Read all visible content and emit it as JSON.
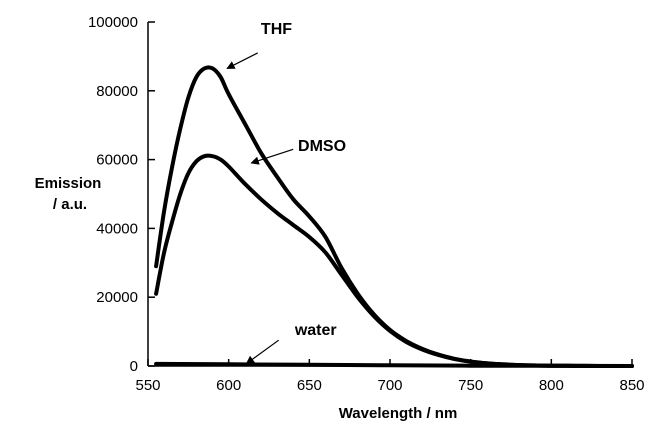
{
  "chart_data": {
    "type": "line",
    "xlabel": "Wavelength / nm",
    "ylabel_line1": "Emission",
    "ylabel_line2": "/ a.u.",
    "xlim": [
      550,
      850
    ],
    "ylim": [
      0,
      100000
    ],
    "xticks": [
      550,
      600,
      650,
      700,
      750,
      800,
      850
    ],
    "yticks": [
      0,
      20000,
      40000,
      60000,
      80000,
      100000
    ],
    "grid": false,
    "series": [
      {
        "name": "THF",
        "x": [
          555,
          560,
          565,
          570,
          575,
          580,
          585,
          590,
          595,
          600,
          610,
          620,
          630,
          640,
          650,
          660,
          670,
          680,
          690,
          700,
          710,
          720,
          730,
          740,
          750,
          760,
          770,
          780,
          790,
          800,
          810,
          820,
          830,
          840,
          850
        ],
        "y": [
          29000,
          45000,
          58000,
          69000,
          78000,
          84000,
          86500,
          86500,
          84000,
          79000,
          70500,
          62000,
          55000,
          48500,
          43500,
          37500,
          28500,
          21000,
          15000,
          10500,
          7300,
          5000,
          3300,
          2100,
          1300,
          800,
          480,
          280,
          160,
          90,
          50,
          25,
          12,
          5,
          0
        ]
      },
      {
        "name": "DMSO",
        "x": [
          555,
          560,
          565,
          570,
          575,
          580,
          585,
          590,
          595,
          600,
          610,
          620,
          630,
          640,
          650,
          660,
          670,
          680,
          690,
          700,
          710,
          720,
          730,
          740,
          750,
          760,
          770,
          780,
          790,
          800,
          810,
          820,
          830,
          840,
          850
        ],
        "y": [
          21000,
          33000,
          42000,
          50000,
          56000,
          59500,
          61000,
          61000,
          60000,
          58000,
          53000,
          48500,
          44500,
          41000,
          37500,
          33000,
          26500,
          20000,
          14500,
          10200,
          7000,
          4800,
          3200,
          2000,
          1250,
          760,
          450,
          260,
          150,
          85,
          45,
          22,
          10,
          4,
          0
        ]
      },
      {
        "name": "water",
        "x": [
          555,
          600,
          650,
          700,
          750,
          800,
          850
        ],
        "y": [
          600,
          500,
          350,
          200,
          100,
          50,
          0
        ]
      }
    ],
    "annotations": [
      {
        "text": "THF",
        "series": "THF",
        "text_x": 620,
        "text_y": 96500,
        "arrow_from_x": 618,
        "arrow_from_y": 91000,
        "arrow_to_x": 599,
        "arrow_to_y": 86500
      },
      {
        "text": "DMSO",
        "series": "DMSO",
        "text_x": 643,
        "text_y": 62500,
        "arrow_from_x": 640,
        "arrow_from_y": 63000,
        "arrow_to_x": 614,
        "arrow_to_y": 59000
      },
      {
        "text": "water",
        "series": "water",
        "text_x": 641,
        "text_y": 9000,
        "arrow_from_x": 631,
        "arrow_from_y": 7500,
        "arrow_to_x": 611,
        "arrow_to_y": 700
      }
    ],
    "line_color": "#000000"
  }
}
